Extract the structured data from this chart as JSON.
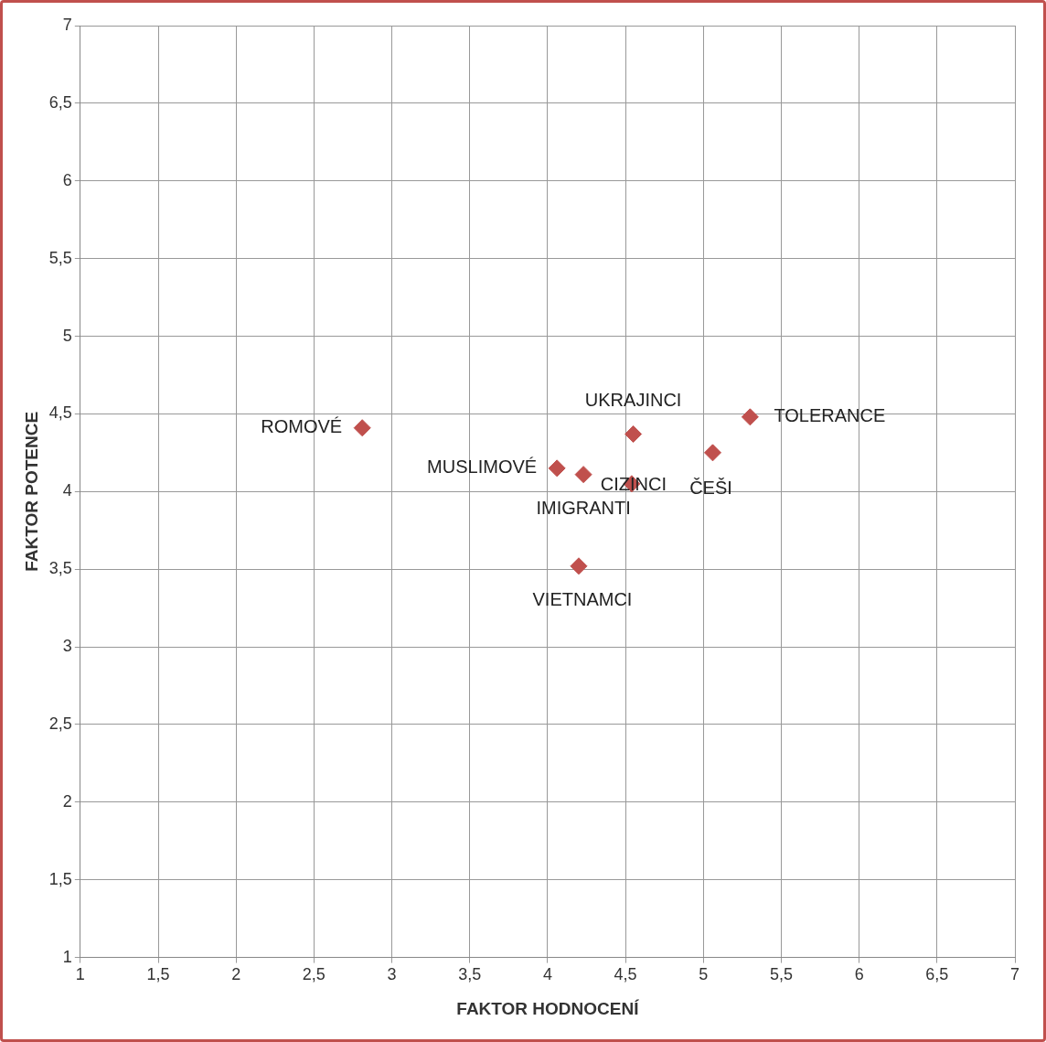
{
  "chart_data": {
    "type": "scatter",
    "xlabel": "FAKTOR HODNOCENÍ",
    "ylabel": "FAKTOR POTENCE",
    "series": [
      {
        "color": "#c0504d",
        "x": [
          2.81,
          4.06,
          4.23,
          4.54,
          4.55,
          5.06,
          5.3,
          4.2
        ],
        "values": [
          4.41,
          4.15,
          4.11,
          4.05,
          4.37,
          4.25,
          4.48,
          3.52
        ]
      }
    ],
    "annotations": [
      {
        "text": "ROMOVÉ",
        "x": 2.81,
        "y": 4.41
      },
      {
        "text": "MUSLIMOVÉ",
        "x": 4.06,
        "y": 4.15
      },
      {
        "text": "IMIGRANTI",
        "x": 4.23,
        "y": 4.11
      },
      {
        "text": "CIZINCI",
        "x": 4.54,
        "y": 4.05
      },
      {
        "text": "UKRAJINCI",
        "x": 4.55,
        "y": 4.37
      },
      {
        "text": "ČEŠI",
        "x": 5.06,
        "y": 4.25
      },
      {
        "text": "TOLERANCE",
        "x": 5.3,
        "y": 4.48
      },
      {
        "text": "VIETNAMCI",
        "x": 4.2,
        "y": 3.52
      }
    ],
    "xlim": [
      1,
      7
    ],
    "xticks": [
      {
        "value": 1,
        "label": "1"
      },
      {
        "value": 1.5,
        "label": "1,5"
      },
      {
        "value": 2,
        "label": "2"
      },
      {
        "value": 2.5,
        "label": "2,5"
      },
      {
        "value": 3,
        "label": "3"
      },
      {
        "value": 3.5,
        "label": "3,5"
      },
      {
        "value": 4,
        "label": "4"
      },
      {
        "value": 4.5,
        "label": "4,5"
      },
      {
        "value": 5,
        "label": "5"
      },
      {
        "value": 5.5,
        "label": "5,5"
      },
      {
        "value": 6,
        "label": "6"
      },
      {
        "value": 6.5,
        "label": "6,5"
      },
      {
        "value": 7,
        "label": "7"
      }
    ],
    "ylim": [
      1,
      7
    ],
    "yticks": [
      {
        "value": 1,
        "label": "1"
      },
      {
        "value": 1.5,
        "label": "1,5"
      },
      {
        "value": 2,
        "label": "2"
      },
      {
        "value": 2.5,
        "label": "2,5"
      },
      {
        "value": 3,
        "label": "3"
      },
      {
        "value": 3.5,
        "label": "3,5"
      },
      {
        "value": 4,
        "label": "4"
      },
      {
        "value": 4.5,
        "label": "4,5"
      },
      {
        "value": 5,
        "label": "5"
      },
      {
        "value": 5.5,
        "label": "5,5"
      },
      {
        "value": 6,
        "label": "6"
      },
      {
        "value": 6.5,
        "label": "6,5"
      },
      {
        "value": 7,
        "label": "7"
      }
    ],
    "grid": true,
    "marker": "diamond"
  }
}
